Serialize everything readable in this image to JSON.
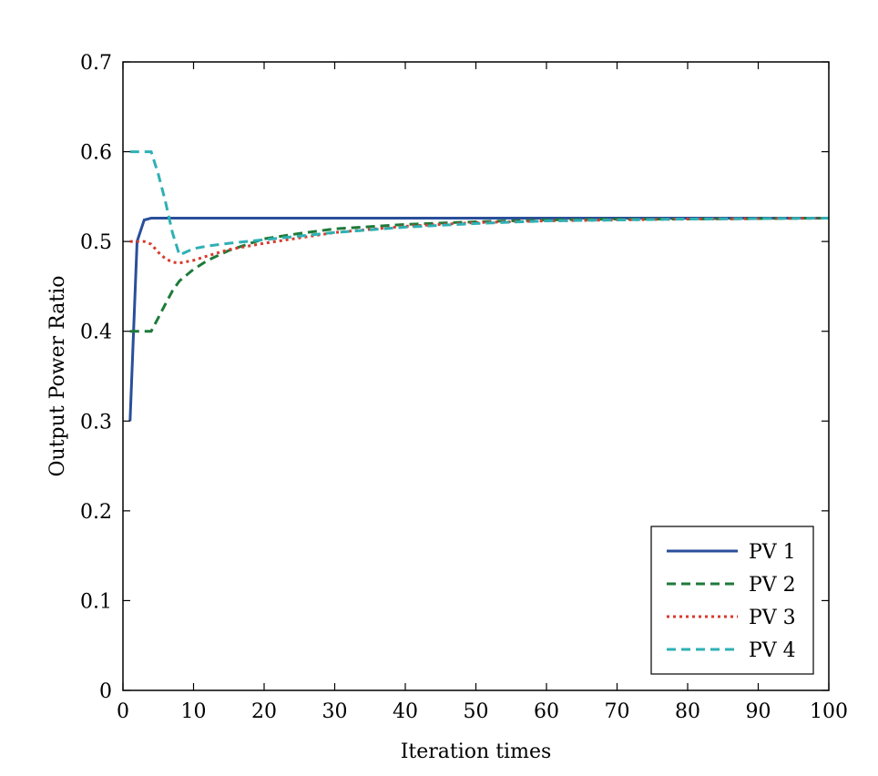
{
  "chart_data": {
    "type": "line",
    "xlabel": "Iteration times",
    "ylabel": "Output Power Ratio",
    "xlim": [
      0,
      100
    ],
    "ylim": [
      0,
      0.7
    ],
    "xticks": [
      0,
      10,
      20,
      30,
      40,
      50,
      60,
      70,
      80,
      90,
      100
    ],
    "yticks": [
      0,
      0.1,
      0.2,
      0.3,
      0.4,
      0.5,
      0.6,
      0.7
    ],
    "ytick_labels": [
      "0",
      "0.1",
      "0.2",
      "0.3",
      "0.4",
      "0.5",
      "0.6",
      "0.7"
    ],
    "grid": false,
    "legend_position": "bottom-right",
    "series": [
      {
        "name": "PV 1",
        "color": "#2a4f9a",
        "dash": "solid",
        "x": [
          1,
          2,
          3,
          4,
          5,
          10,
          20,
          40,
          60,
          80,
          100
        ],
        "y": [
          0.3,
          0.5,
          0.524,
          0.526,
          0.526,
          0.526,
          0.526,
          0.526,
          0.526,
          0.526,
          0.526
        ]
      },
      {
        "name": "PV 2",
        "color": "#1e7a3a",
        "dash": "dashed",
        "x": [
          1,
          2,
          3,
          4,
          5,
          6,
          7,
          8,
          10,
          12,
          15,
          20,
          25,
          30,
          40,
          50,
          60,
          70,
          80,
          100
        ],
        "y": [
          0.4,
          0.4,
          0.4,
          0.4,
          0.415,
          0.43,
          0.445,
          0.456,
          0.469,
          0.479,
          0.49,
          0.503,
          0.509,
          0.514,
          0.519,
          0.522,
          0.524,
          0.525,
          0.525,
          0.526
        ]
      },
      {
        "name": "PV 3",
        "color": "#d93a2e",
        "dash": "dotted",
        "x": [
          1,
          2,
          3,
          4,
          5,
          6,
          7,
          8,
          10,
          12,
          15,
          20,
          25,
          30,
          40,
          50,
          60,
          70,
          80,
          100
        ],
        "y": [
          0.5,
          0.5,
          0.5,
          0.497,
          0.488,
          0.481,
          0.477,
          0.476,
          0.479,
          0.484,
          0.491,
          0.498,
          0.504,
          0.51,
          0.517,
          0.521,
          0.523,
          0.524,
          0.525,
          0.526
        ]
      },
      {
        "name": "PV 4",
        "color": "#2fb0b4",
        "dash": "dashed",
        "x": [
          1,
          2,
          3,
          4,
          5,
          6,
          7,
          8,
          10,
          12,
          15,
          20,
          25,
          30,
          40,
          50,
          60,
          70,
          80,
          100
        ],
        "y": [
          0.6,
          0.6,
          0.6,
          0.6,
          0.575,
          0.545,
          0.51,
          0.485,
          0.492,
          0.495,
          0.498,
          0.502,
          0.506,
          0.51,
          0.516,
          0.52,
          0.523,
          0.524,
          0.525,
          0.526
        ]
      }
    ]
  }
}
